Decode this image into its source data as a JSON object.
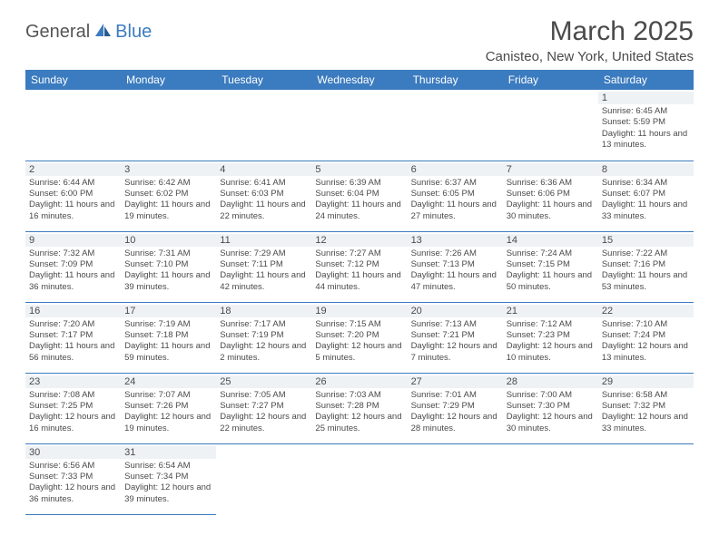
{
  "logo": {
    "part1": "General",
    "part2": "Blue"
  },
  "title": "March 2025",
  "location": "Canisteo, New York, United States",
  "headers": [
    "Sunday",
    "Monday",
    "Tuesday",
    "Wednesday",
    "Thursday",
    "Friday",
    "Saturday"
  ],
  "colors": {
    "header_bg": "#3b7bbf",
    "header_text": "#ffffff",
    "daynum_bg": "#eef2f5",
    "border": "#3b7bbf",
    "text": "#4a4a4a",
    "logo_accent": "#3b7bbf"
  },
  "weeks": [
    [
      null,
      null,
      null,
      null,
      null,
      null,
      {
        "n": "1",
        "sr": "6:45 AM",
        "ss": "5:59 PM",
        "dl": "11 hours and 13 minutes."
      }
    ],
    [
      {
        "n": "2",
        "sr": "6:44 AM",
        "ss": "6:00 PM",
        "dl": "11 hours and 16 minutes."
      },
      {
        "n": "3",
        "sr": "6:42 AM",
        "ss": "6:02 PM",
        "dl": "11 hours and 19 minutes."
      },
      {
        "n": "4",
        "sr": "6:41 AM",
        "ss": "6:03 PM",
        "dl": "11 hours and 22 minutes."
      },
      {
        "n": "5",
        "sr": "6:39 AM",
        "ss": "6:04 PM",
        "dl": "11 hours and 24 minutes."
      },
      {
        "n": "6",
        "sr": "6:37 AM",
        "ss": "6:05 PM",
        "dl": "11 hours and 27 minutes."
      },
      {
        "n": "7",
        "sr": "6:36 AM",
        "ss": "6:06 PM",
        "dl": "11 hours and 30 minutes."
      },
      {
        "n": "8",
        "sr": "6:34 AM",
        "ss": "6:07 PM",
        "dl": "11 hours and 33 minutes."
      }
    ],
    [
      {
        "n": "9",
        "sr": "7:32 AM",
        "ss": "7:09 PM",
        "dl": "11 hours and 36 minutes."
      },
      {
        "n": "10",
        "sr": "7:31 AM",
        "ss": "7:10 PM",
        "dl": "11 hours and 39 minutes."
      },
      {
        "n": "11",
        "sr": "7:29 AM",
        "ss": "7:11 PM",
        "dl": "11 hours and 42 minutes."
      },
      {
        "n": "12",
        "sr": "7:27 AM",
        "ss": "7:12 PM",
        "dl": "11 hours and 44 minutes."
      },
      {
        "n": "13",
        "sr": "7:26 AM",
        "ss": "7:13 PM",
        "dl": "11 hours and 47 minutes."
      },
      {
        "n": "14",
        "sr": "7:24 AM",
        "ss": "7:15 PM",
        "dl": "11 hours and 50 minutes."
      },
      {
        "n": "15",
        "sr": "7:22 AM",
        "ss": "7:16 PM",
        "dl": "11 hours and 53 minutes."
      }
    ],
    [
      {
        "n": "16",
        "sr": "7:20 AM",
        "ss": "7:17 PM",
        "dl": "11 hours and 56 minutes."
      },
      {
        "n": "17",
        "sr": "7:19 AM",
        "ss": "7:18 PM",
        "dl": "11 hours and 59 minutes."
      },
      {
        "n": "18",
        "sr": "7:17 AM",
        "ss": "7:19 PM",
        "dl": "12 hours and 2 minutes."
      },
      {
        "n": "19",
        "sr": "7:15 AM",
        "ss": "7:20 PM",
        "dl": "12 hours and 5 minutes."
      },
      {
        "n": "20",
        "sr": "7:13 AM",
        "ss": "7:21 PM",
        "dl": "12 hours and 7 minutes."
      },
      {
        "n": "21",
        "sr": "7:12 AM",
        "ss": "7:23 PM",
        "dl": "12 hours and 10 minutes."
      },
      {
        "n": "22",
        "sr": "7:10 AM",
        "ss": "7:24 PM",
        "dl": "12 hours and 13 minutes."
      }
    ],
    [
      {
        "n": "23",
        "sr": "7:08 AM",
        "ss": "7:25 PM",
        "dl": "12 hours and 16 minutes."
      },
      {
        "n": "24",
        "sr": "7:07 AM",
        "ss": "7:26 PM",
        "dl": "12 hours and 19 minutes."
      },
      {
        "n": "25",
        "sr": "7:05 AM",
        "ss": "7:27 PM",
        "dl": "12 hours and 22 minutes."
      },
      {
        "n": "26",
        "sr": "7:03 AM",
        "ss": "7:28 PM",
        "dl": "12 hours and 25 minutes."
      },
      {
        "n": "27",
        "sr": "7:01 AM",
        "ss": "7:29 PM",
        "dl": "12 hours and 28 minutes."
      },
      {
        "n": "28",
        "sr": "7:00 AM",
        "ss": "7:30 PM",
        "dl": "12 hours and 30 minutes."
      },
      {
        "n": "29",
        "sr": "6:58 AM",
        "ss": "7:32 PM",
        "dl": "12 hours and 33 minutes."
      }
    ],
    [
      {
        "n": "30",
        "sr": "6:56 AM",
        "ss": "7:33 PM",
        "dl": "12 hours and 36 minutes."
      },
      {
        "n": "31",
        "sr": "6:54 AM",
        "ss": "7:34 PM",
        "dl": "12 hours and 39 minutes."
      },
      null,
      null,
      null,
      null,
      null
    ]
  ],
  "labels": {
    "sunrise": "Sunrise:",
    "sunset": "Sunset:",
    "daylight": "Daylight:"
  }
}
